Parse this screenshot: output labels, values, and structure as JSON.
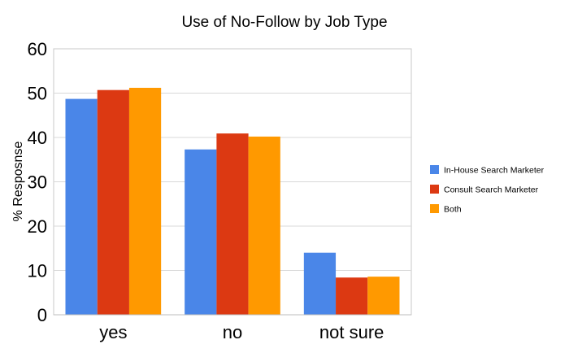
{
  "chart_data": {
    "type": "bar",
    "title": "Use of No-Follow by Job Type",
    "xlabel": "",
    "ylabel": "% Resposnse",
    "categories": [
      "yes",
      "no",
      "not sure"
    ],
    "ylim": [
      0,
      60
    ],
    "yticks": [
      0,
      10,
      20,
      30,
      40,
      50,
      60
    ],
    "grid": true,
    "legend_position": "right",
    "series": [
      {
        "name": "In-House Search Marketer",
        "color": "#4a86e8",
        "values": [
          48.7,
          37.3,
          14.0
        ]
      },
      {
        "name": "Consult Search Marketer",
        "color": "#dc3912",
        "values": [
          50.7,
          40.9,
          8.4
        ]
      },
      {
        "name": "Both",
        "color": "#ff9900",
        "values": [
          51.2,
          40.2,
          8.6
        ]
      }
    ]
  }
}
